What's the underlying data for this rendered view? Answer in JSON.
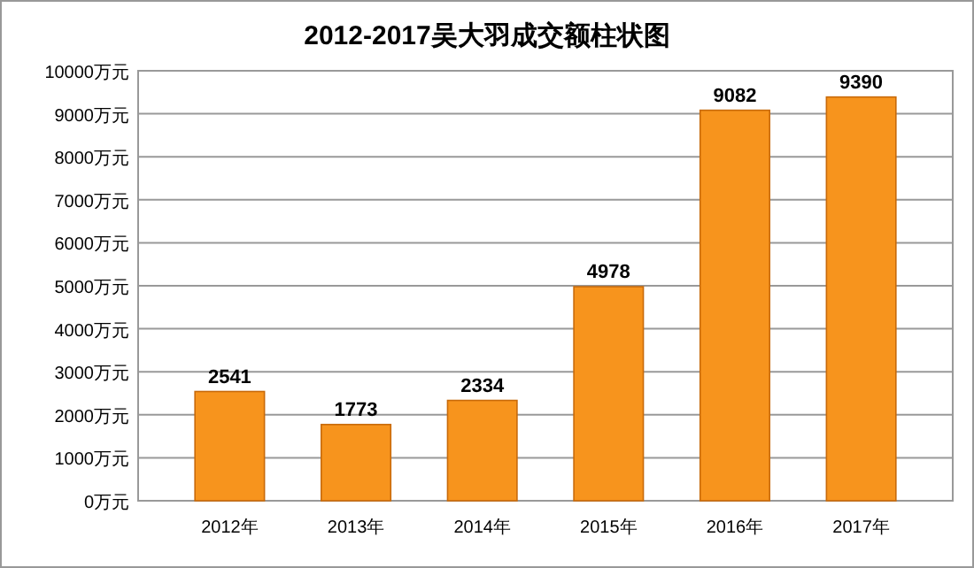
{
  "chart_data": {
    "type": "bar",
    "title": "2012-2017吴大羽成交额柱状图",
    "categories": [
      "2012年",
      "2013年",
      "2014年",
      "2015年",
      "2016年",
      "2017年"
    ],
    "values": [
      2541,
      1773,
      2334,
      4978,
      9082,
      9390
    ],
    "color": "#f7941d",
    "ylim": [
      0,
      10000
    ],
    "yticks": [
      {
        "value": 0,
        "label": "0万元"
      },
      {
        "value": 1000,
        "label": "1000万元"
      },
      {
        "value": 2000,
        "label": "2000万元"
      },
      {
        "value": 3000,
        "label": "3000万元"
      },
      {
        "value": 4000,
        "label": "4000万元"
      },
      {
        "value": 5000,
        "label": "5000万元"
      },
      {
        "value": 6000,
        "label": "6000万元"
      },
      {
        "value": 7000,
        "label": "7000万元"
      },
      {
        "value": 8000,
        "label": "8000万元"
      },
      {
        "value": 9000,
        "label": "9000万元"
      },
      {
        "value": 10000,
        "label": "10000万元"
      }
    ],
    "grid": "y",
    "data_labels": true
  }
}
